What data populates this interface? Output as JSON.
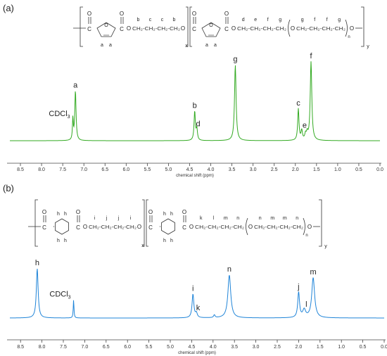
{
  "panels": [
    {
      "id": "a",
      "label": "(a)",
      "color": "#33aa22",
      "structure": {
        "letters_seg1": [
          "b",
          "c",
          "c",
          "b"
        ],
        "letters_seg2": [
          "d",
          "e",
          "f",
          "g",
          "g",
          "f",
          "f",
          "g"
        ],
        "ring_letters": [
          "a",
          "a",
          "a",
          "a"
        ],
        "subscript_x": "x",
        "subscript_n": "n",
        "subscript_y": "y",
        "atoms": [
          "C",
          "O",
          "C",
          "O",
          "O",
          "C",
          "O",
          "C",
          "O",
          "O"
        ]
      },
      "chart_data": {
        "type": "line",
        "xlabel": "chemical shift (ppm)",
        "xlim": [
          8.75,
          0.0
        ],
        "ylim": [
          0,
          1.0
        ],
        "xticks": [
          "8.5",
          "8.0",
          "7.5",
          "7.0",
          "6.5",
          "6.0",
          "5.5",
          "5.0",
          "4.5",
          "4.0",
          "3.5",
          "3.0",
          "2.5",
          "2.0",
          "1.5",
          "1.0",
          "0.5",
          "0.0"
        ],
        "peaks": [
          {
            "x": 7.26,
            "h": 0.27,
            "w": 0.012
          },
          {
            "x": 7.2,
            "h": 0.63,
            "w": 0.018
          },
          {
            "x": 4.38,
            "h": 0.37,
            "w": 0.018
          },
          {
            "x": 4.33,
            "h": 0.14,
            "w": 0.018
          },
          {
            "x": 3.42,
            "h": 0.96,
            "w": 0.022
          },
          {
            "x": 1.93,
            "h": 0.4,
            "w": 0.018
          },
          {
            "x": 1.85,
            "h": 0.12,
            "w": 0.02
          },
          {
            "x": 1.76,
            "h": 0.07,
            "w": 0.02
          },
          {
            "x": 1.72,
            "h": 0.08,
            "w": 0.02
          },
          {
            "x": 1.63,
            "h": 1.0,
            "w": 0.022
          }
        ],
        "annotations": [
          {
            "text": "CDCl",
            "sub": "3",
            "x": 7.26,
            "h": 0.27
          },
          {
            "text": "a",
            "x": 7.2,
            "h": 0.63
          },
          {
            "text": "b",
            "x": 4.38,
            "h": 0.37
          },
          {
            "text": "d",
            "x": 4.3,
            "h": 0.14
          },
          {
            "text": "g",
            "x": 3.42,
            "h": 0.96
          },
          {
            "text": "c",
            "x": 1.93,
            "h": 0.4
          },
          {
            "text": "e",
            "x": 1.78,
            "h": 0.12
          },
          {
            "text": "f",
            "x": 1.63,
            "h": 1.0
          }
        ]
      }
    },
    {
      "id": "b",
      "label": "(b)",
      "color": "#1f84d8",
      "structure": {
        "letters_seg1": [
          "i",
          "j",
          "j",
          "i"
        ],
        "letters_seg2": [
          "k",
          "l",
          "m",
          "n",
          "n",
          "m",
          "m",
          "n"
        ],
        "ring_letters": [
          "h",
          "h",
          "h",
          "h",
          "h",
          "h",
          "h",
          "h"
        ],
        "subscript_x": "x",
        "subscript_n": "n",
        "subscript_y": "y",
        "atoms": [
          "C",
          "O",
          "C",
          "O",
          "O",
          "C",
          "O",
          "C",
          "O",
          "O"
        ]
      },
      "chart_data": {
        "type": "line",
        "xlabel": "chemical shift (ppm)",
        "xlim": [
          8.75,
          0.0
        ],
        "ylim": [
          0,
          1.0
        ],
        "xticks": [
          "8.5",
          "8.0",
          "7.5",
          "7.0",
          "6.5",
          "6.0",
          "5.5",
          "5.0",
          "4.5",
          "4.0",
          "3.5",
          "3.0",
          "2.5",
          "2.0",
          "1.5",
          "1.0",
          "0.5",
          "0.0"
        ],
        "peaks": [
          {
            "x": 8.11,
            "h": 0.9,
            "w": 0.025
          },
          {
            "x": 7.26,
            "h": 0.33,
            "w": 0.01
          },
          {
            "x": 4.47,
            "h": 0.43,
            "w": 0.025
          },
          {
            "x": 4.39,
            "h": 0.08,
            "w": 0.025
          },
          {
            "x": 3.97,
            "h": 0.05,
            "w": 0.02
          },
          {
            "x": 3.62,
            "h": 0.78,
            "w": 0.04
          },
          {
            "x": 2.0,
            "h": 0.46,
            "w": 0.025
          },
          {
            "x": 1.87,
            "h": 0.14,
            "w": 0.04
          },
          {
            "x": 1.66,
            "h": 0.73,
            "w": 0.04
          }
        ],
        "annotations": [
          {
            "text": "h",
            "x": 8.11,
            "h": 0.9
          },
          {
            "text": "CDCl",
            "sub": "3",
            "x": 7.26,
            "h": 0.33
          },
          {
            "text": "i",
            "x": 4.47,
            "h": 0.43
          },
          {
            "text": "k",
            "x": 4.35,
            "h": 0.08
          },
          {
            "text": "n",
            "x": 3.62,
            "h": 0.78
          },
          {
            "text": "j",
            "x": 2.0,
            "h": 0.46
          },
          {
            "text": "l",
            "x": 1.82,
            "h": 0.14
          },
          {
            "text": "m",
            "x": 1.66,
            "h": 0.73
          }
        ]
      }
    }
  ]
}
